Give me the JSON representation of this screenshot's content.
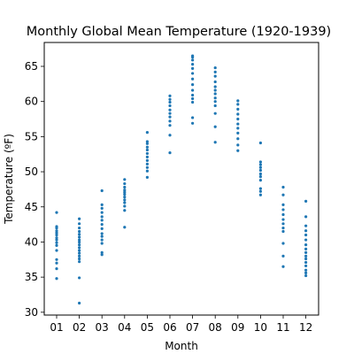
{
  "chart_data": {
    "type": "scatter",
    "title": "Monthly Global Mean Temperature (1920-1939)",
    "xlabel": "Month",
    "ylabel": "Temperature (ºF)",
    "categories": [
      "01",
      "02",
      "03",
      "04",
      "05",
      "06",
      "07",
      "08",
      "09",
      "10",
      "11",
      "12"
    ],
    "y_ticks": [
      30,
      35,
      40,
      45,
      50,
      55,
      60,
      65
    ],
    "ylim": [
      29.6,
      68.4
    ],
    "grid": false,
    "point_color": "#1f77b4",
    "series": [
      {
        "values": [
          [
            34.8,
            36.2,
            37.0,
            37.5,
            38.8,
            39.5,
            39.9,
            40.3,
            40.6,
            41.0,
            41.3,
            41.6,
            42.0,
            42.2,
            44.2
          ],
          [
            31.3,
            34.9,
            37.2,
            37.6,
            38.0,
            38.4,
            38.8,
            39.2,
            39.6,
            40.0,
            40.3,
            40.7,
            41.1,
            41.5,
            42.0,
            42.6,
            43.3
          ],
          [
            38.2,
            38.5,
            39.8,
            40.3,
            40.8,
            41.2,
            41.9,
            42.5,
            43.1,
            43.6,
            44.2,
            44.8,
            45.3,
            47.3
          ],
          [
            42.1,
            44.5,
            45.1,
            45.6,
            46.0,
            46.4,
            46.8,
            47.1,
            47.4,
            47.8,
            48.3,
            48.9
          ],
          [
            49.2,
            50.1,
            50.6,
            51.1,
            51.6,
            52.1,
            52.6,
            53.1,
            53.5,
            54.0,
            54.3,
            55.6
          ],
          [
            52.7,
            55.2,
            56.6,
            57.2,
            57.8,
            58.3,
            58.8,
            59.4,
            59.9,
            60.3,
            60.8
          ],
          [
            56.9,
            57.7,
            59.9,
            60.4,
            60.9,
            61.6,
            62.4,
            63.2,
            64.0,
            64.7,
            65.3,
            65.9,
            66.3,
            66.5
          ],
          [
            54.2,
            56.4,
            58.3,
            59.4,
            60.0,
            60.5,
            61.1,
            61.6,
            62.1,
            62.8,
            63.6,
            64.2,
            64.8
          ],
          [
            53.0,
            53.8,
            54.7,
            55.5,
            56.2,
            56.8,
            57.5,
            58.2,
            58.9,
            59.6,
            60.1
          ],
          [
            46.7,
            47.2,
            47.6,
            48.8,
            49.3,
            49.7,
            50.2,
            50.6,
            51.0,
            51.4,
            54.1
          ],
          [
            36.5,
            38.0,
            39.8,
            41.5,
            42.0,
            42.6,
            43.2,
            43.9,
            44.6,
            45.3,
            46.7,
            47.8
          ],
          [
            35.2,
            35.6,
            36.0,
            36.6,
            37.1,
            37.6,
            38.0,
            38.5,
            39.0,
            39.6,
            40.3,
            41.0,
            41.6,
            42.3,
            43.6,
            45.8
          ]
        ]
      }
    ]
  }
}
